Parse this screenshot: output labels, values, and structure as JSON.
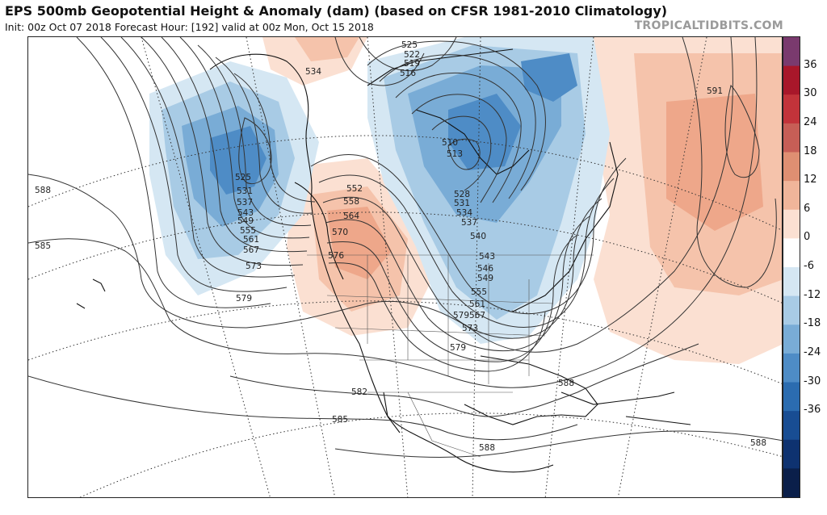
{
  "header": {
    "title": "EPS 500mb Geopotential Height & Anomaly (dam) (based on CFSR 1981-2010 Climatology)",
    "subtitle": "Init: 00z Oct 07 2018   Forecast Hour: [192]   valid at 00z Mon, Oct 15 2018",
    "brand": "TROPICALTIDBITS.COM"
  },
  "colorbar": {
    "ticks": [
      "36",
      "30",
      "24",
      "18",
      "12",
      "6",
      "0",
      "-6",
      "-12",
      "-18",
      "-24",
      "-30",
      "-36"
    ],
    "colors": [
      "#7a3a6e",
      "#a8172a",
      "#c2333a",
      "#c75e56",
      "#df8f72",
      "#f0b59a",
      "#fbe0d2",
      "#ffffff",
      "#d5e7f3",
      "#a8cbe5",
      "#79acd6",
      "#4e8cc6",
      "#2b6cb0",
      "#184d93",
      "#0e3270",
      "#0a1f4a"
    ]
  },
  "contour_labels": [
    "534",
    "525",
    "522",
    "519",
    "516",
    "510",
    "513",
    "528",
    "531",
    "534",
    "537",
    "540",
    "543",
    "546",
    "549",
    "552",
    "555",
    "558",
    "561",
    "564",
    "567",
    "570",
    "573",
    "576",
    "579",
    "579",
    "525",
    "531",
    "537",
    "543",
    "549",
    "555",
    "561",
    "567",
    "573",
    "579",
    "582",
    "585",
    "585",
    "588",
    "588",
    "588",
    "588",
    "591"
  ],
  "map": {
    "land_color": "#ffffff",
    "water_color": "#ffffff",
    "coast_color": "#111111",
    "contour_color": "#333333"
  }
}
